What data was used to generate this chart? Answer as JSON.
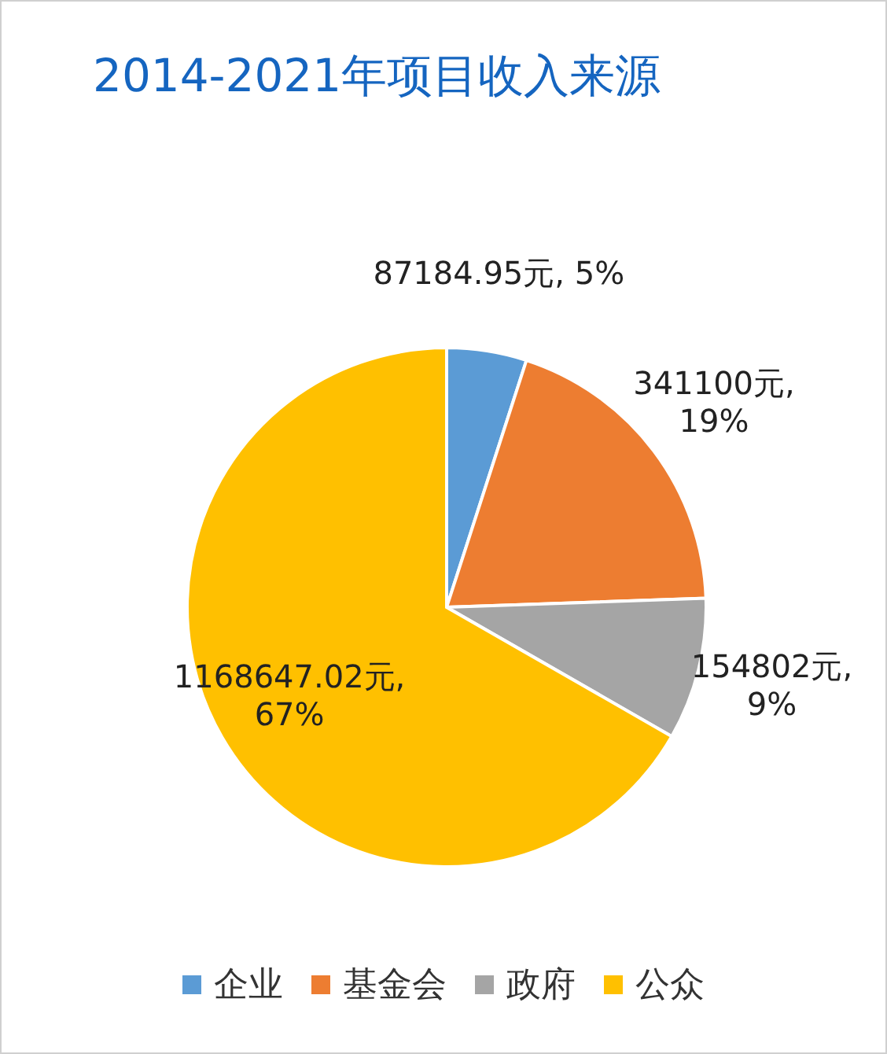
{
  "chart_data": {
    "type": "pie",
    "title": "2014-2021年项目收入来源",
    "categories": [
      "企业",
      "基金会",
      "政府",
      "公众"
    ],
    "values": [
      87184.95,
      341100,
      154802,
      1168647.02
    ],
    "value_labels": [
      "87184.95元, 5%",
      "341100元, 19%",
      "154802元, 9%",
      "1168647.02元, 67%"
    ],
    "colors": [
      "#5b9bd5",
      "#ed7d31",
      "#a5a5a5",
      "#ffc000"
    ],
    "legend": "bottom"
  }
}
